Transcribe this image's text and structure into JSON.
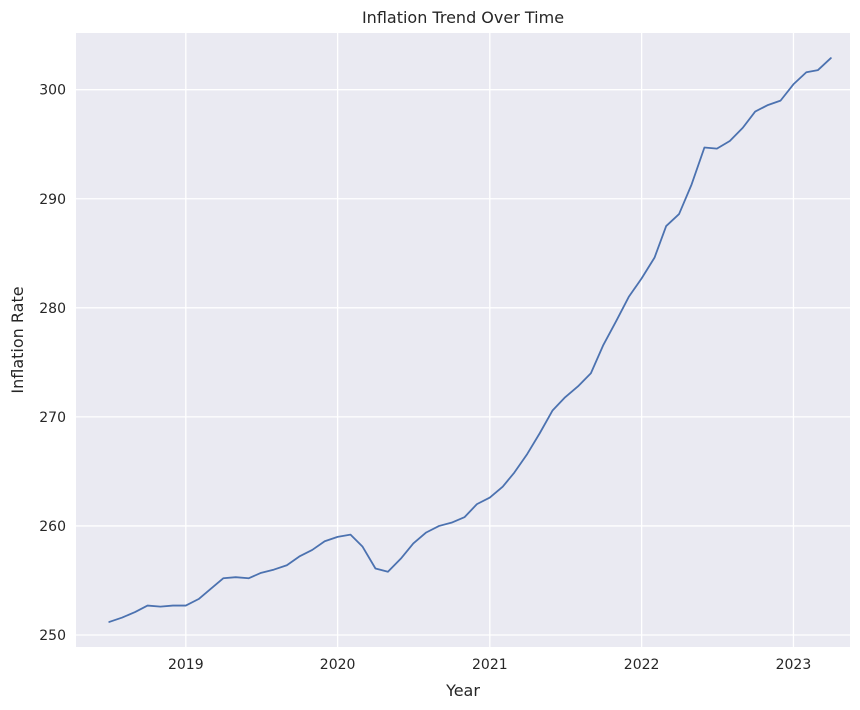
{
  "chart_data": {
    "type": "line",
    "title": "Inflation Trend Over Time",
    "xlabel": "Year",
    "ylabel": "Inflation Rate",
    "grid": true,
    "legend": "none",
    "colors": {
      "background": "#eaeaf2",
      "grid": "#ffffff",
      "line": "#4c72b0",
      "text": "#262626"
    },
    "xlim": [
      "2018-04-12",
      "2023-05-17"
    ],
    "ylim": [
      248.9,
      305.2
    ],
    "x_ticks": [
      {
        "date": "2019-01-01",
        "label": "2019"
      },
      {
        "date": "2020-01-01",
        "label": "2020"
      },
      {
        "date": "2021-01-01",
        "label": "2021"
      },
      {
        "date": "2022-01-01",
        "label": "2022"
      },
      {
        "date": "2023-01-01",
        "label": "2023"
      }
    ],
    "y_ticks": [
      250,
      260,
      270,
      280,
      290,
      300
    ],
    "series": [
      {
        "x": [
          "2018-07-01",
          "2018-08-01",
          "2018-09-01",
          "2018-10-01",
          "2018-11-01",
          "2018-12-01",
          "2019-01-01",
          "2019-02-01",
          "2019-03-01",
          "2019-04-01",
          "2019-05-01",
          "2019-06-01",
          "2019-07-01",
          "2019-08-01",
          "2019-09-01",
          "2019-10-01",
          "2019-11-01",
          "2019-12-01",
          "2020-01-01",
          "2020-02-01",
          "2020-03-01",
          "2020-04-01",
          "2020-05-01",
          "2020-06-01",
          "2020-07-01",
          "2020-08-01",
          "2020-09-01",
          "2020-10-01",
          "2020-11-01",
          "2020-12-01",
          "2021-01-01",
          "2021-02-01",
          "2021-03-01",
          "2021-04-01",
          "2021-05-01",
          "2021-06-01",
          "2021-07-01",
          "2021-08-01",
          "2021-09-01",
          "2021-10-01",
          "2021-11-01",
          "2021-12-01",
          "2022-01-01",
          "2022-02-01",
          "2022-03-01",
          "2022-04-01",
          "2022-05-01",
          "2022-06-01",
          "2022-07-01",
          "2022-08-01",
          "2022-09-01",
          "2022-10-01",
          "2022-11-01",
          "2022-12-01",
          "2023-01-01",
          "2023-02-01",
          "2023-03-01",
          "2023-04-01"
        ],
        "y": [
          251.2,
          251.6,
          252.1,
          252.7,
          252.6,
          252.7,
          252.7,
          253.3,
          254.2,
          255.2,
          255.3,
          255.2,
          255.7,
          256.0,
          256.4,
          257.2,
          257.8,
          258.6,
          259.0,
          259.2,
          258.1,
          256.1,
          255.8,
          257.0,
          258.4,
          259.4,
          260.0,
          260.3,
          260.8,
          262.0,
          262.6,
          263.6,
          264.9,
          266.6,
          268.5,
          270.6,
          271.8,
          272.8,
          274.0,
          276.6,
          278.8,
          281.0,
          282.7,
          284.6,
          287.5,
          288.6,
          291.3,
          294.7,
          294.6,
          295.3,
          296.5,
          298.0,
          298.6,
          299.0,
          300.5,
          301.6,
          301.8,
          302.9
        ]
      }
    ]
  }
}
